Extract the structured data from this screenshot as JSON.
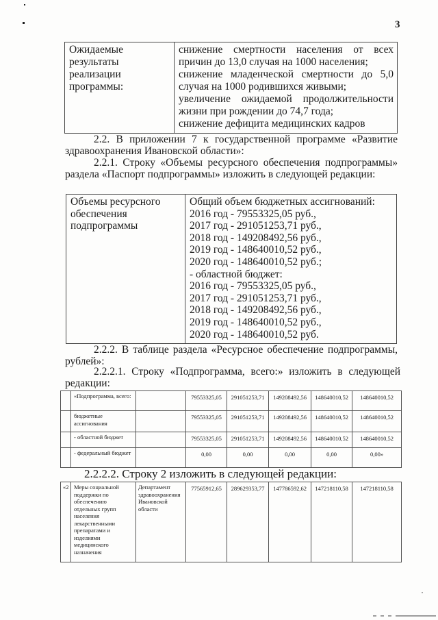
{
  "page_number": "3",
  "expected_results_table": {
    "label": "Ожидаемые результаты реализации программы:",
    "items": [
      "снижение смертности населения от всех причин до 13,0 случая на 1000 населения;",
      "снижение младенческой смертности до 5,0 случая на 1000 родившихся живыми;",
      "увеличение ожидаемой продолжительности жизни при рождении до 74,7 года;",
      "снижение дефицита медицинских кадров"
    ]
  },
  "paragraphs": {
    "p_2_2": "2.2. В приложении 7 к государственной программе «Развитие здравоохранения Ивановской области»:",
    "p_2_2_1": "2.2.1. Строку «Объемы ресурсного обеспечения подпрограммы» раздела «Паспорт подпрограммы» изложить в следующей редакции:",
    "p_2_2_2": "2.2.2. В таблице раздела «Ресурсное обеспечение подпрограммы, рублей»:",
    "p_2_2_2_1": "2.2.2.1. Строку «Подпрограмма, всего:» изложить в следующей редакции:",
    "p_2_2_2_2": "2.2.2.2. Строку 2 изложить в следующей редакции:"
  },
  "resources_table": {
    "label": "Объемы ресурсного обеспечения подпрограммы",
    "lines": [
      "Общий объем бюджетных ассигнований:",
      "2016 год - 79553325,05 руб.,",
      "2017 год - 291051253,71 руб.,",
      "2018 год - 149208492,56 руб.,",
      "2019 год - 148640010,52 руб.,",
      "2020 год - 148640010,52 руб.;",
      "- областной бюджет:",
      "2016 год - 79553325,05 руб.,",
      "2017 год - 291051253,71 руб.,",
      "2018 год - 149208492,56 руб.,",
      "2019 год - 148640010,52 руб.,",
      "2020 год - 148640010,52 руб."
    ]
  },
  "subprogram_table": {
    "rows": [
      {
        "num": "",
        "name": "«Подпрограмма, всего:",
        "executor": "",
        "values": [
          "79553325,05",
          "291051253,71",
          "149208492,56",
          "148640010,52",
          "148640010,52"
        ]
      },
      {
        "num": "",
        "name": "бюджетные ассигнования",
        "executor": "",
        "values": [
          "79553325,05",
          "291051253,71",
          "149208492,56",
          "148640010,52",
          "148640010,52"
        ]
      },
      {
        "num": "",
        "name": "- областной бюджет",
        "executor": "",
        "values": [
          "79553325,05",
          "291051253,71",
          "149208492,56",
          "148640010,52",
          "148640010,52"
        ]
      },
      {
        "num": "",
        "name": "- федеральный бюджет",
        "executor": "",
        "values": [
          "0,00",
          "0,00",
          "0,00",
          "0,00",
          "0,00»"
        ]
      }
    ]
  },
  "row2_table": {
    "rows": [
      {
        "num": "«2",
        "name": "Меры социальной поддержки по обеспечению отдельных групп населения лекарственными препаратами и изделиями медицинского назначения",
        "executor": "Департамент здравоохранения Ивановской области",
        "values": [
          "77565912,65",
          "289629353,77",
          "147786592,62",
          "147218110,58",
          "147218110,58"
        ]
      }
    ]
  }
}
